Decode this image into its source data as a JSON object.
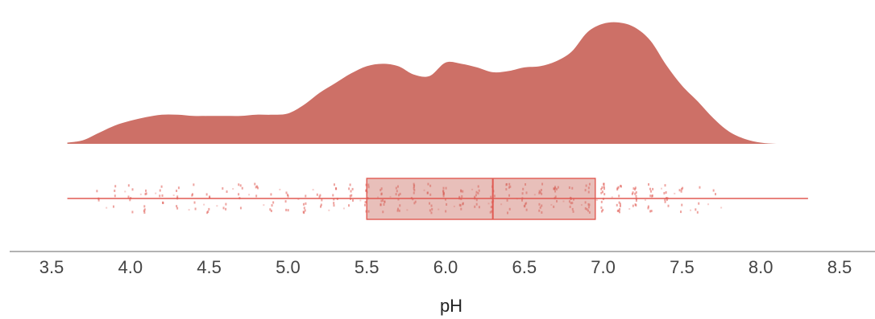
{
  "chart_data": {
    "type": "raincloud",
    "xlabel": "pH",
    "xlim": [
      3.5,
      8.5
    ],
    "x_ticks": [
      3.5,
      4.0,
      4.5,
      5.0,
      5.5,
      6.0,
      6.5,
      7.0,
      7.5,
      8.0,
      8.5
    ],
    "x_tick_labels": [
      "3.5",
      "4.0",
      "4.5",
      "5.0",
      "5.5",
      "6.0",
      "6.5",
      "7.0",
      "7.5",
      "8.0",
      "8.5"
    ],
    "color": "#cd7067",
    "box_color": "#e05a52",
    "density": {
      "x": [
        3.6,
        3.7,
        3.8,
        3.9,
        4.0,
        4.1,
        4.2,
        4.3,
        4.4,
        4.5,
        4.6,
        4.7,
        4.8,
        4.9,
        5.0,
        5.1,
        5.2,
        5.3,
        5.4,
        5.5,
        5.6,
        5.7,
        5.8,
        5.9,
        6.0,
        6.1,
        6.2,
        6.3,
        6.4,
        6.5,
        6.6,
        6.7,
        6.8,
        6.9,
        7.0,
        7.1,
        7.2,
        7.3,
        7.4,
        7.5,
        7.6,
        7.7,
        7.8,
        7.9,
        8.0,
        8.1,
        8.2,
        8.3
      ],
      "y": [
        0.01,
        0.03,
        0.09,
        0.15,
        0.19,
        0.22,
        0.24,
        0.24,
        0.23,
        0.23,
        0.23,
        0.23,
        0.24,
        0.24,
        0.25,
        0.32,
        0.42,
        0.5,
        0.58,
        0.64,
        0.66,
        0.64,
        0.57,
        0.56,
        0.67,
        0.66,
        0.63,
        0.59,
        0.6,
        0.63,
        0.64,
        0.68,
        0.76,
        0.92,
        0.99,
        1.0,
        0.96,
        0.85,
        0.65,
        0.48,
        0.35,
        0.21,
        0.1,
        0.04,
        0.01,
        0.0,
        0.0,
        0.0
      ]
    },
    "box": {
      "whisker_low": 3.6,
      "q1": 5.5,
      "median": 6.3,
      "q3": 6.95,
      "whisker_high": 8.3
    },
    "points": {
      "columns": [
        3.8,
        3.9,
        4.0,
        4.1,
        4.2,
        4.3,
        4.4,
        4.5,
        4.6,
        4.7,
        4.8,
        4.9,
        5.0,
        5.1,
        5.2,
        5.3,
        5.4,
        5.5,
        5.6,
        5.7,
        5.8,
        5.9,
        6.0,
        6.1,
        6.2,
        6.3,
        6.4,
        6.5,
        6.6,
        6.7,
        6.8,
        6.9,
        7.0,
        7.1,
        7.2,
        7.3,
        7.4,
        7.5,
        7.6,
        7.7
      ],
      "counts": [
        3,
        4,
        6,
        7,
        6,
        6,
        5,
        6,
        5,
        6,
        5,
        5,
        6,
        7,
        6,
        8,
        9,
        11,
        12,
        11,
        10,
        10,
        12,
        12,
        11,
        11,
        10,
        11,
        11,
        12,
        12,
        13,
        14,
        14,
        13,
        11,
        9,
        6,
        4,
        2
      ]
    }
  }
}
